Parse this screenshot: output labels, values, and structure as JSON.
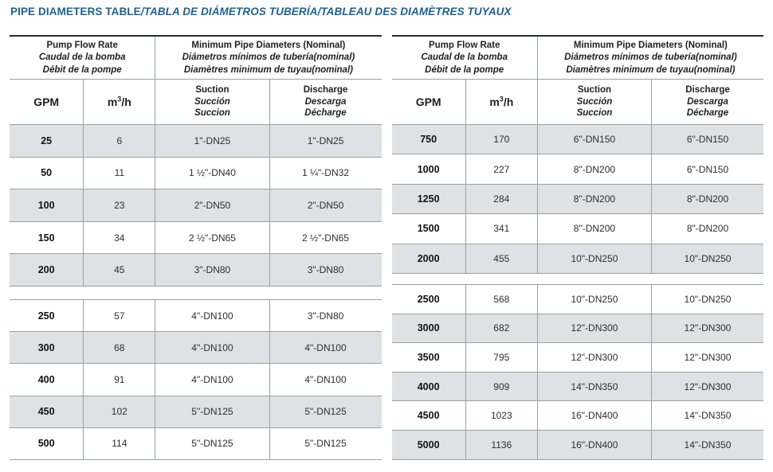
{
  "title": {
    "en": "PIPE DIAMETERS TABLE",
    "es": "/TABLA DE DIÁMETROS TUBERÍA",
    "fr": "/TABLEAU DES DIAMÈTRES TUYAUX"
  },
  "colors": {
    "title_blue": "#1d6295",
    "row_shade": "#dee2e4",
    "grid_line": "#9aa0a3",
    "table_top_border": "#2b2e30",
    "text": "#1f1f1f"
  },
  "header": {
    "flow_group": [
      "Pump Flow Rate",
      "Caudal de la bomba",
      "Débit de la pompe"
    ],
    "diameter_group": [
      "Minimum Pipe Diameters (Nominal)",
      "Diámetros mínimos de tubería(nominal)",
      "Diamètres minimum de tuyau(nominal)"
    ],
    "col_gpm": "GPM",
    "col_m3h": [
      "m",
      "3",
      "/h"
    ],
    "col_suction": [
      "Suction",
      "Succión",
      "Succion"
    ],
    "col_discharge": [
      "Discharge",
      "Descarga",
      "Décharge"
    ]
  },
  "tables": [
    {
      "blocks": [
        {
          "rows": [
            {
              "gpm": "25",
              "m3h": "6",
              "suction": "1\"-DN25",
              "discharge": "1\"-DN25"
            },
            {
              "gpm": "50",
              "m3h": "11",
              "suction": "1 ½\"-DN40",
              "discharge": "1 ¼\"-DN32"
            },
            {
              "gpm": "100",
              "m3h": "23",
              "suction": "2\"-DN50",
              "discharge": "2\"-DN50"
            },
            {
              "gpm": "150",
              "m3h": "34",
              "suction": "2 ½\"-DN65",
              "discharge": "2 ½\"-DN65"
            },
            {
              "gpm": "200",
              "m3h": "45",
              "suction": "3\"-DN80",
              "discharge": "3\"-DN80"
            }
          ]
        },
        {
          "rows": [
            {
              "gpm": "250",
              "m3h": "57",
              "suction": "4\"-DN100",
              "discharge": "3\"-DN80"
            },
            {
              "gpm": "300",
              "m3h": "68",
              "suction": "4\"-DN100",
              "discharge": "4\"-DN100"
            },
            {
              "gpm": "400",
              "m3h": "91",
              "suction": "4\"-DN100",
              "discharge": "4\"-DN100"
            },
            {
              "gpm": "450",
              "m3h": "102",
              "suction": "5\"-DN125",
              "discharge": "5\"-DN125"
            },
            {
              "gpm": "500",
              "m3h": "114",
              "suction": "5\"-DN125",
              "discharge": "5\"-DN125"
            }
          ]
        }
      ]
    },
    {
      "blocks": [
        {
          "rows": [
            {
              "gpm": "750",
              "m3h": "170",
              "suction": "6\"-DN150",
              "discharge": "6\"-DN150"
            },
            {
              "gpm": "1000",
              "m3h": "227",
              "suction": "8\"-DN200",
              "discharge": "6\"-DN150"
            },
            {
              "gpm": "1250",
              "m3h": "284",
              "suction": "8\"-DN200",
              "discharge": "8\"-DN200"
            },
            {
              "gpm": "1500",
              "m3h": "341",
              "suction": "8\"-DN200",
              "discharge": "8\"-DN200"
            },
            {
              "gpm": "2000",
              "m3h": "455",
              "suction": "10\"-DN250",
              "discharge": "10\"-DN250"
            }
          ]
        },
        {
          "rows": [
            {
              "gpm": "2500",
              "m3h": "568",
              "suction": "10\"-DN250",
              "discharge": "10\"-DN250"
            },
            {
              "gpm": "3000",
              "m3h": "682",
              "suction": "12\"-DN300",
              "discharge": "12\"-DN300"
            },
            {
              "gpm": "3500",
              "m3h": "795",
              "suction": "12\"-DN300",
              "discharge": "12\"-DN300"
            },
            {
              "gpm": "4000",
              "m3h": "909",
              "suction": "14\"-DN350",
              "discharge": "12\"-DN300"
            },
            {
              "gpm": "4500",
              "m3h": "1023",
              "suction": "16\"-DN400",
              "discharge": "14\"-DN350"
            },
            {
              "gpm": "5000",
              "m3h": "1136",
              "suction": "16\"-DN400",
              "discharge": "14\"-DN350"
            }
          ]
        }
      ]
    }
  ]
}
